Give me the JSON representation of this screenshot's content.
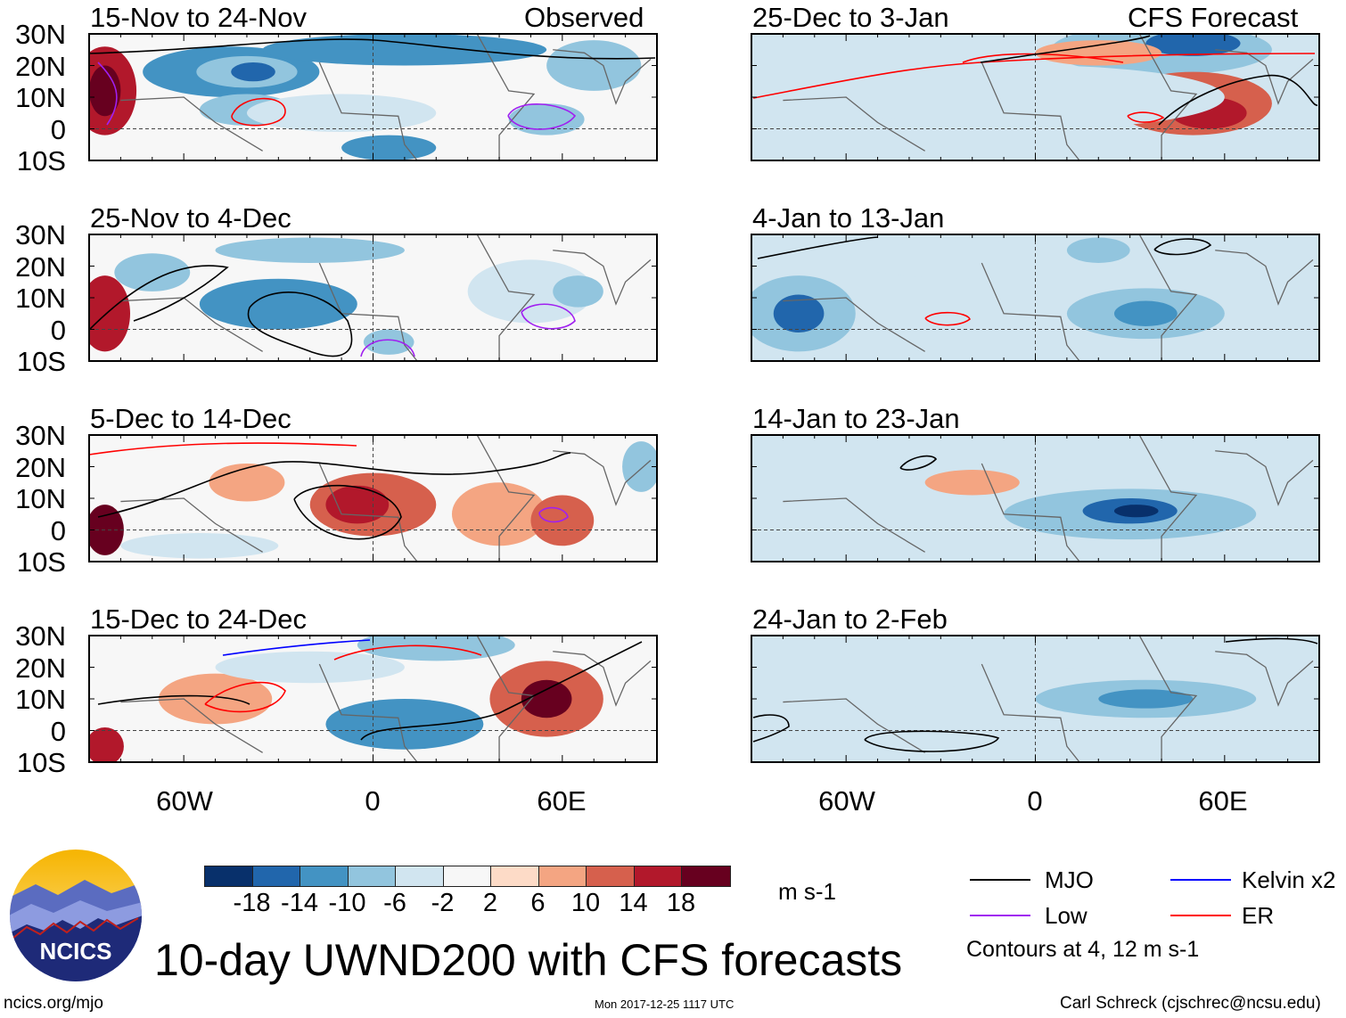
{
  "panels_left": {
    "header_right": "Observed",
    "titles": [
      "15-Nov to 24-Nov",
      "25-Nov to 4-Dec",
      "5-Dec to 14-Dec",
      "15-Dec to 24-Dec"
    ]
  },
  "panels_right": {
    "header_right": "CFS Forecast",
    "titles": [
      "25-Dec to 3-Jan",
      "4-Jan to 13-Jan",
      "14-Jan to 23-Jan",
      "24-Jan to 2-Feb"
    ]
  },
  "lat_labels": [
    "30N",
    "20N",
    "10N",
    "0",
    "10S"
  ],
  "lon_labels": [
    "60W",
    "0",
    "60E"
  ],
  "colorbar": {
    "labels": [
      "-18",
      "-14",
      "-10",
      "-6",
      "-2",
      "2",
      "6",
      "10",
      "14",
      "18"
    ],
    "colors": [
      "#08306b",
      "#2166ac",
      "#4393c3",
      "#92c5de",
      "#d1e5f0",
      "#f7f7f7",
      "#fddbc7",
      "#f4a582",
      "#d6604d",
      "#b2182b",
      "#67001f"
    ],
    "units": "m s-1"
  },
  "legend": {
    "items": [
      {
        "label": "MJO",
        "color": "#000000"
      },
      {
        "label": "Kelvin x2",
        "color": "#0000ff"
      },
      {
        "label": "Low",
        "color": "#a020f0"
      },
      {
        "label": "ER",
        "color": "#ff0000"
      }
    ],
    "note": "Contours at 4, 12 m s-1"
  },
  "logo_text": "NCICS",
  "main_title": "10-day UWND200 with CFS forecasts",
  "footer": {
    "left": "ncics.org/mjo",
    "center": "Mon 2017-12-25 1117 UTC",
    "right": "Carl Schreck (cjschrec@ncsu.edu)"
  }
}
